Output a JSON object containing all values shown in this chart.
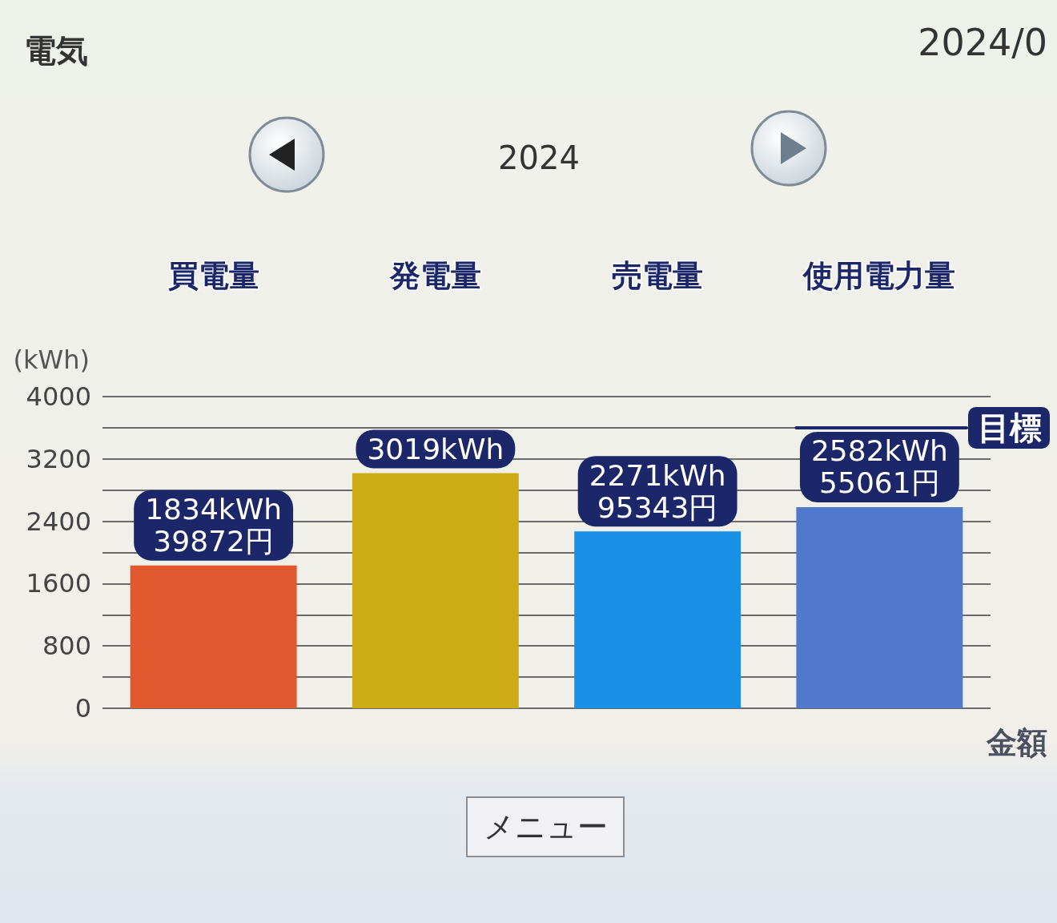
{
  "chart_data": {
    "type": "bar",
    "title": "電気",
    "subtitle": "2024",
    "ylabel": "(kWh)",
    "categories": [
      "買電量",
      "発電量",
      "売電量",
      "使用電力量"
    ],
    "values": [
      1834,
      3019,
      2271,
      2582
    ],
    "colors": [
      "#e2582e",
      "#cdab14",
      "#1a8fe6",
      "#5078cc"
    ],
    "value_labels": [
      "1834kWh\n39872円",
      "3019kWh",
      "2271kWh\n95343円",
      "2582kWh\n55061円"
    ],
    "ylim": [
      0,
      4000
    ],
    "yticks": [
      0,
      {
        "value": 400,
        "label": null
      },
      800,
      {
        "value": 1200,
        "label": null
      },
      1600,
      {
        "value": 2000,
        "label": null
      },
      2400,
      {
        "value": 2800,
        "label": null
      },
      3200,
      {
        "value": 3600,
        "label": null
      },
      4000
    ],
    "grid": "y",
    "ref_lines": [
      {
        "axis": "y",
        "value": 3600,
        "label": "目標",
        "color": "#1b2768"
      }
    ],
    "annotations": [
      "2024/0",
      "金額",
      "メニュー"
    ]
  }
}
